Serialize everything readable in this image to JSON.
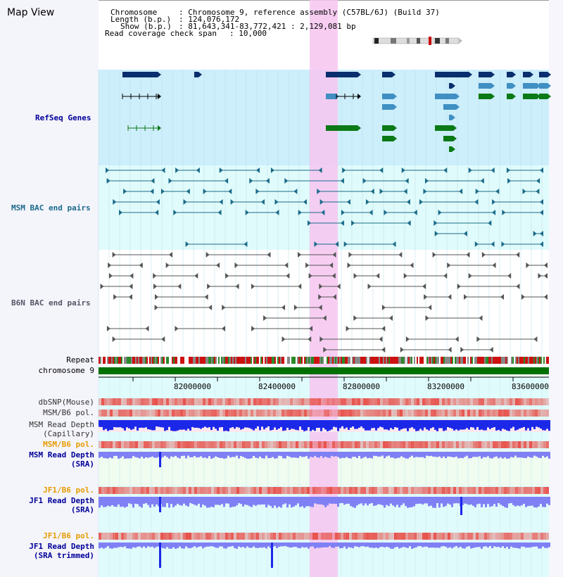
{
  "title": "Map View",
  "info": {
    "chromosome_label": "Chromosome",
    "chromosome_value": ": Chromosome 9, reference assembly (C57BL/6J) (Build 37)",
    "length_label": "Length (b.p.)",
    "length_value": ": 124,076,172",
    "show_label": "Show (b.p.)",
    "show_value": ": 81,643,341-83,772,421 : 2,129,081 bp",
    "coverage_label": "Read coverage check span",
    "coverage_value": ": 10,000"
  },
  "tracks": {
    "refseq": "RefSeq Genes",
    "msm_bac": "MSM BAC end pairs",
    "b6n_bac": "B6N BAC end pairs",
    "repeat": "Repeat",
    "chromosome": "chromosome 9",
    "dbsnp": "dbSNP(Mouse)",
    "msm_b6_pol": "MSM/B6 pol.",
    "msm_read_depth_cap_1": "MSM Read Depth",
    "msm_read_depth_cap_2": "(Capillary)",
    "msm_b6_pol_sra": "MSM/B6 pol.",
    "msm_read_depth_sra_1": "MSM Read Depth",
    "msm_read_depth_sra_2": "(SRA)",
    "jf1_b6_pol": "JF1/B6 pol.",
    "jf1_read_depth_1": "JF1 Read Depth",
    "jf1_read_depth_2": "(SRA)",
    "jf1_b6_pol_trim": "JF1/B6 pol.",
    "jf1_read_depth_trim_1": "JF1 Read Depth",
    "jf1_read_depth_trim_2": "(SRA trimmed)"
  },
  "axis": {
    "ticks": [
      "82000000",
      "82400000",
      "82800000",
      "83200000",
      "83600000"
    ]
  },
  "colors": {
    "highlight": "#f6c6f0",
    "refseq_bg": "#cdeefb",
    "msm_bg": "#e0fbfb",
    "gene_navy": "#0a2f6e",
    "gene_blue": "#3f8fc2",
    "gene_green": "#0b7a16",
    "msm_bac": "#1b6b8a",
    "b6n_bac": "#555555",
    "snp_red": "#e8524c",
    "depth_blue": "#1c28e8",
    "depth_lavender": "#8080f5",
    "chrom_green": "#007000",
    "label_navy": "#000099",
    "label_orange": "#e79c00",
    "label_teal": "#1b6b8a",
    "label_gray": "#555566"
  }
}
